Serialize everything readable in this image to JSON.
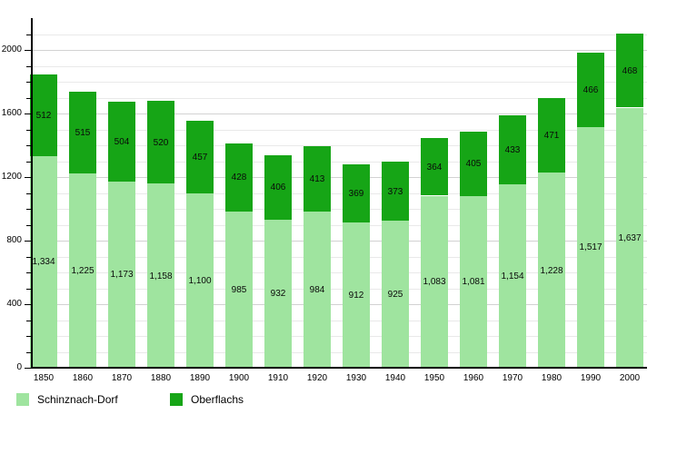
{
  "chart_data": {
    "type": "bar",
    "stacked": true,
    "title": "",
    "xlabel": "",
    "ylabel": "",
    "categories": [
      "1850",
      "1860",
      "1870",
      "1880",
      "1890",
      "1900",
      "1910",
      "1920",
      "1930",
      "1940",
      "1950",
      "1960",
      "1970",
      "1980",
      "1990",
      "2000"
    ],
    "series": [
      {
        "name": "Schinznach-Dorf",
        "color": "#9fe49f",
        "values": [
          1334,
          1225,
          1173,
          1158,
          1100,
          985,
          932,
          984,
          912,
          925,
          1083,
          1081,
          1154,
          1228,
          1517,
          1637
        ]
      },
      {
        "name": "Oberflachs",
        "color": "#16a516",
        "values": [
          512,
          515,
          504,
          520,
          457,
          428,
          406,
          413,
          369,
          373,
          364,
          405,
          433,
          471,
          466,
          468
        ]
      }
    ],
    "totals": [
      1846,
      1740,
      1677,
      1678,
      1557,
      1413,
      1338,
      1397,
      1281,
      1298,
      1447,
      1486,
      1587,
      1699,
      1983,
      2105
    ],
    "ylim": [
      0,
      2200
    ],
    "ytick_minor_step": 100,
    "ytick_major_step": 400,
    "ytick_labels": [
      "0",
      "400",
      "800",
      "1200",
      "1600",
      "2000"
    ],
    "grid": true,
    "value_labels": "inside-segments, thousands with comma",
    "legend_position": "bottom-left"
  },
  "legend": {
    "items": [
      {
        "label": "Schinznach-Dorf",
        "color": "#9fe49f"
      },
      {
        "label": "Oberflachs",
        "color": "#16a516"
      }
    ]
  },
  "colors": {
    "background": "#ffffff",
    "axis": "#000000",
    "grid_minor": "#e9e9e9",
    "grid_major": "#d2d2d2",
    "text": "#000000"
  }
}
